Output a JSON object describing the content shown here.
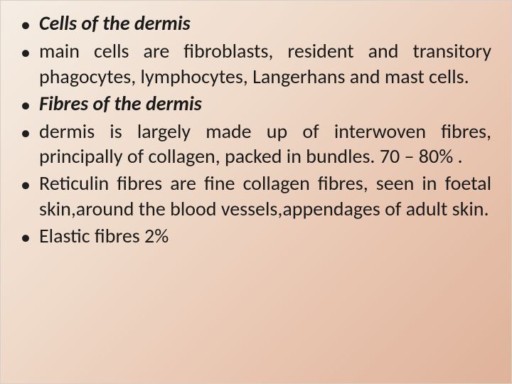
{
  "slide": {
    "background_gradient": [
      "#f5ede4",
      "#f0dccc",
      "#e8c4af",
      "#dfb29a"
    ],
    "text_color": "#1a1a1a",
    "font_family": "Calibri",
    "base_fontsize": 28,
    "line_height": 1.28,
    "text_align": "justify",
    "bullets": [
      {
        "text": "Cells of the dermis",
        "style": "heading"
      },
      {
        "text": "main cells are fibroblasts, resident and transitory phagocytes, lymphocytes, Langerhans and mast cells.",
        "style": "body"
      },
      {
        "text": " Fibres of the dermis",
        "style": "heading"
      },
      {
        "text": "dermis is largely made up of interwoven fibres, principally of collagen, packed in bundles. 70 – 80% .",
        "style": "body"
      },
      {
        "text": "Reticulin fibres are fine collagen fibres, seen in foetal skin,around the blood vessels,appendages of adult skin.",
        "style": "body"
      },
      {
        "text": " Elastic fibres 2%",
        "style": "body"
      }
    ]
  }
}
